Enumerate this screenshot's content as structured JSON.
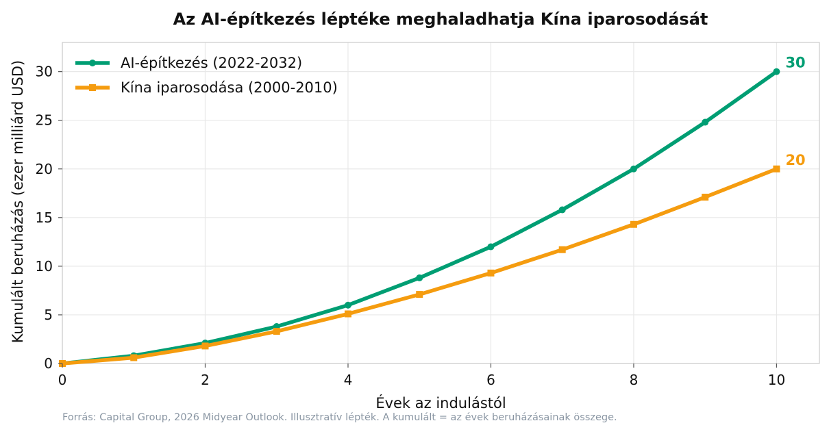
{
  "chart_data": {
    "type": "line",
    "title": "Az AI-építkezés léptéke meghaladhatja Kína iparosodását",
    "xlabel": "Évek az indulástól",
    "ylabel": "Kumulált beruházás (ezer milliárd USD)",
    "xlim": [
      0,
      10.6
    ],
    "ylim": [
      0,
      33
    ],
    "xticks": [
      0,
      2,
      4,
      6,
      8,
      10
    ],
    "yticks": [
      0,
      5,
      10,
      15,
      20,
      25,
      30
    ],
    "grid": true,
    "legend_position": "top-left",
    "x": [
      0,
      1,
      2,
      3,
      4,
      5,
      6,
      7,
      8,
      9,
      10
    ],
    "series": [
      {
        "name": "AI-építkezés (2022-2032)",
        "color": "#009e73",
        "marker": "circle",
        "values": [
          0,
          0.8,
          2.1,
          3.8,
          6.0,
          8.8,
          12.0,
          15.8,
          20.0,
          24.8,
          30.0
        ],
        "end_label": "30"
      },
      {
        "name": "Kína iparosodása (2000-2010)",
        "color": "#f59c0f",
        "marker": "square",
        "values": [
          0,
          0.6,
          1.8,
          3.3,
          5.1,
          7.1,
          9.3,
          11.7,
          14.3,
          17.1,
          20.0
        ],
        "end_label": "20"
      }
    ],
    "source_note": "Forrás: Capital Group, 2026 Midyear Outlook. Illusztratív lépték. A kumulált = az évek beruházásainak összege."
  }
}
